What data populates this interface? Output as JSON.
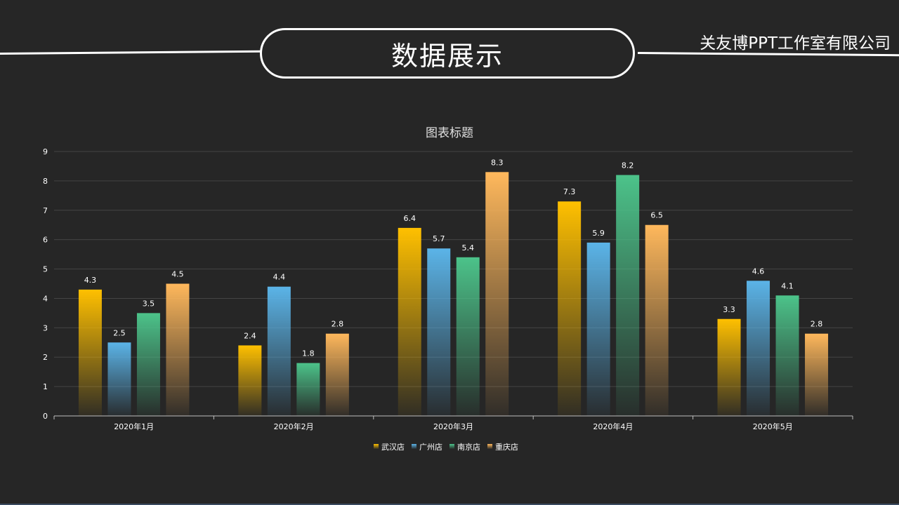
{
  "header": {
    "title": "数据展示",
    "company": "关友博PPT工作室有限公司"
  },
  "chart_data": {
    "type": "bar",
    "title": "图表标题",
    "categories": [
      "2020年1月",
      "2020年2月",
      "2020年3月",
      "2020年4月",
      "2020年5月"
    ],
    "series": [
      {
        "name": "武汉店",
        "values": [
          4.3,
          2.4,
          6.4,
          7.3,
          3.3
        ],
        "color": "#FFC000"
      },
      {
        "name": "广州店",
        "values": [
          2.5,
          4.4,
          5.7,
          5.9,
          4.6
        ],
        "color": "#5BB4E8"
      },
      {
        "name": "南京店",
        "values": [
          3.5,
          1.8,
          5.4,
          8.2,
          4.1
        ],
        "color": "#4CC38A"
      },
      {
        "name": "重庆店",
        "values": [
          4.5,
          2.8,
          8.3,
          6.5,
          2.8
        ],
        "color": "#FFB85C"
      }
    ],
    "ylim": [
      0,
      9
    ],
    "yticks": [
      0,
      1,
      2,
      3,
      4,
      5,
      6,
      7,
      8,
      9
    ],
    "grid": true,
    "legend": "bottom",
    "xlabel": "",
    "ylabel": ""
  }
}
